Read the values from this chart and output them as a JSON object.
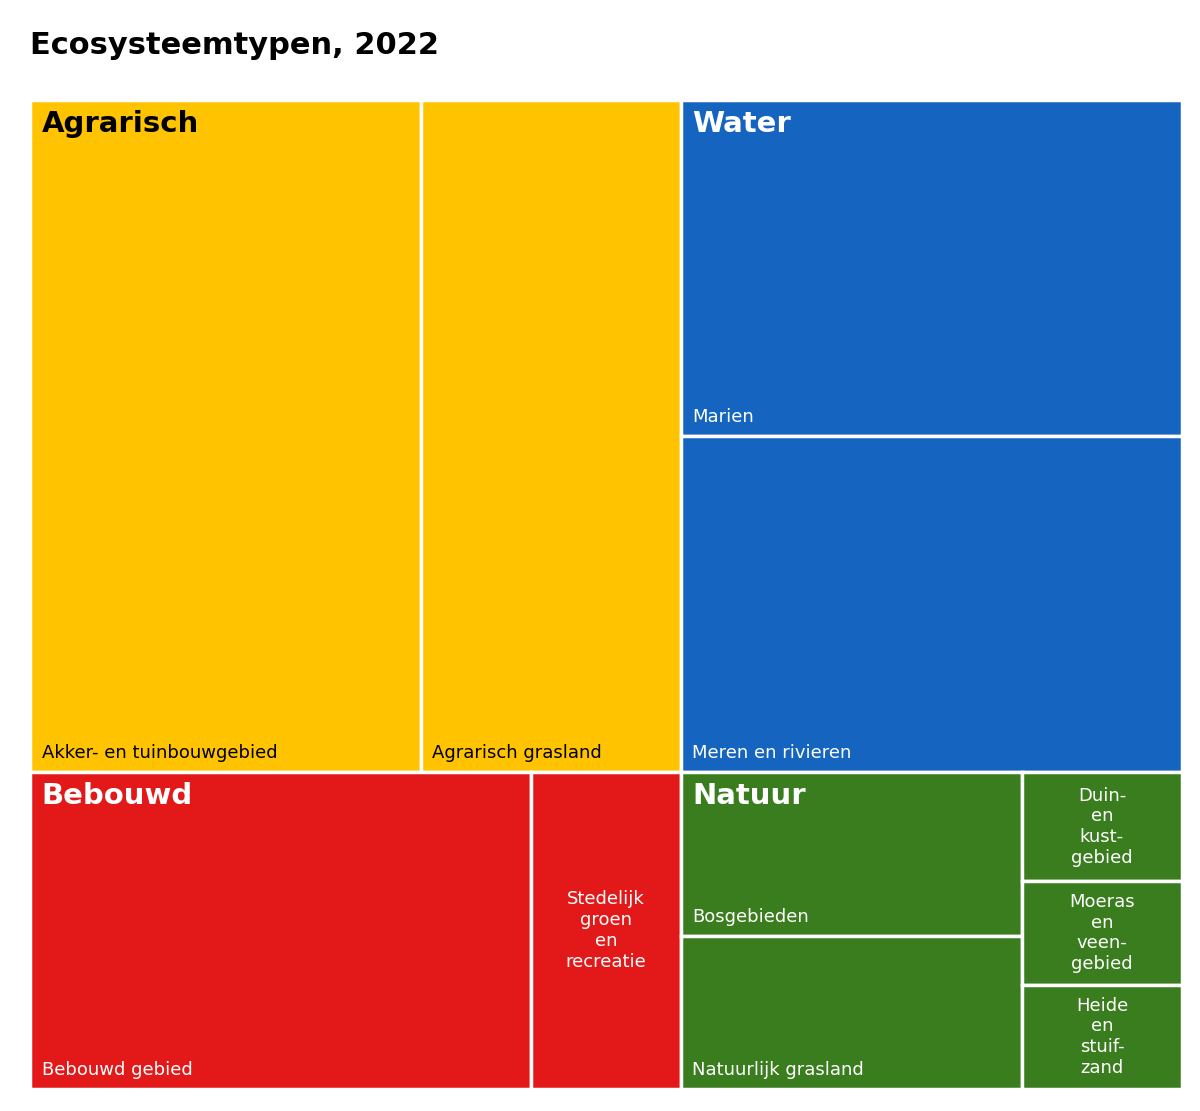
{
  "title": "Ecosysteemtypen, 2022",
  "title_fontsize": 22,
  "title_fontweight": "bold",
  "background_color": "#ffffff",
  "border_color": "#ffffff",
  "border_lw": 2.5,
  "rects": [
    {
      "id": "akker",
      "label": "Agrarisch",
      "sublabel": "Akker- en tuinbouwgebied",
      "color": "#FFC300",
      "xf": 0.0,
      "yf": 0.32,
      "wf": 0.339,
      "hf": 0.68,
      "label_bold": true,
      "label_size": 21,
      "sublabel_size": 13,
      "label_va": "top",
      "label_ha": "left",
      "label_color": "#000000",
      "sublabel_color": "#000000"
    },
    {
      "id": "agrgrasland",
      "label": "Agrarisch grasland",
      "sublabel": null,
      "color": "#FFC300",
      "xf": 0.339,
      "yf": 0.32,
      "wf": 0.226,
      "hf": 0.68,
      "label_bold": false,
      "label_size": 13,
      "sublabel_size": 13,
      "label_va": "bottom",
      "label_ha": "left",
      "label_color": "#000000",
      "sublabel_color": null
    },
    {
      "id": "marien",
      "label": "Water",
      "sublabel": "Marien",
      "color": "#1565C0",
      "xf": 0.565,
      "yf": 0.66,
      "wf": 0.435,
      "hf": 0.34,
      "label_bold": true,
      "label_size": 21,
      "sublabel_size": 13,
      "label_va": "top",
      "label_ha": "left",
      "label_color": "#ffffff",
      "sublabel_color": "#ffffff"
    },
    {
      "id": "merenrivieren",
      "label": "Meren en rivieren",
      "sublabel": null,
      "color": "#1565C0",
      "xf": 0.565,
      "yf": 0.32,
      "wf": 0.435,
      "hf": 0.34,
      "label_bold": false,
      "label_size": 13,
      "sublabel_size": 13,
      "label_va": "bottom",
      "label_ha": "left",
      "label_color": "#ffffff",
      "sublabel_color": null
    },
    {
      "id": "bebouwd",
      "label": "Bebouwd",
      "sublabel": "Bebouwd gebied",
      "color": "#E31919",
      "xf": 0.0,
      "yf": 0.0,
      "wf": 0.435,
      "hf": 0.32,
      "label_bold": true,
      "label_size": 21,
      "sublabel_size": 13,
      "label_va": "top",
      "label_ha": "left",
      "label_color": "#ffffff",
      "sublabel_color": "#ffffff"
    },
    {
      "id": "stedelijk",
      "label": "Stedelijk\ngroen\nen\nrecreatie",
      "sublabel": null,
      "color": "#E31919",
      "xf": 0.435,
      "yf": 0.0,
      "wf": 0.13,
      "hf": 0.32,
      "label_bold": false,
      "label_size": 13,
      "sublabel_size": 13,
      "label_va": "center",
      "label_ha": "center",
      "label_color": "#ffffff",
      "sublabel_color": null
    },
    {
      "id": "bosgebieden",
      "label": "Natuur",
      "sublabel": "Bosgebieden",
      "color": "#3A7D1E",
      "xf": 0.565,
      "yf": 0.155,
      "wf": 0.296,
      "hf": 0.165,
      "label_bold": true,
      "label_size": 21,
      "sublabel_size": 13,
      "label_va": "top",
      "label_ha": "left",
      "label_color": "#ffffff",
      "sublabel_color": "#ffffff"
    },
    {
      "id": "natuurgrasland",
      "label": "Natuurlijk grasland",
      "sublabel": null,
      "color": "#3A7D1E",
      "xf": 0.565,
      "yf": 0.0,
      "wf": 0.296,
      "hf": 0.155,
      "label_bold": false,
      "label_size": 13,
      "sublabel_size": 13,
      "label_va": "bottom",
      "label_ha": "left",
      "label_color": "#ffffff",
      "sublabel_color": null
    },
    {
      "id": "duin",
      "label": "Duin-\nen\nkust-\ngebied",
      "sublabel": null,
      "color": "#3A7D1E",
      "xf": 0.861,
      "yf": 0.21,
      "wf": 0.139,
      "hf": 0.11,
      "label_bold": false,
      "label_size": 13,
      "sublabel_size": 13,
      "label_va": "center",
      "label_ha": "center",
      "label_color": "#ffffff",
      "sublabel_color": null
    },
    {
      "id": "moeras",
      "label": "Moeras\nen\nveen-\ngebied",
      "sublabel": null,
      "color": "#3A7D1E",
      "xf": 0.861,
      "yf": 0.105,
      "wf": 0.139,
      "hf": 0.105,
      "label_bold": false,
      "label_size": 13,
      "sublabel_size": 13,
      "label_va": "center",
      "label_ha": "center",
      "label_color": "#ffffff",
      "sublabel_color": null
    },
    {
      "id": "heide",
      "label": "Heide\nen\nstuif-\nzand",
      "sublabel": null,
      "color": "#3A7D1E",
      "xf": 0.861,
      "yf": 0.0,
      "wf": 0.139,
      "hf": 0.105,
      "label_bold": false,
      "label_size": 13,
      "sublabel_size": 13,
      "label_va": "center",
      "label_ha": "center",
      "label_color": "#ffffff",
      "sublabel_color": null
    }
  ]
}
